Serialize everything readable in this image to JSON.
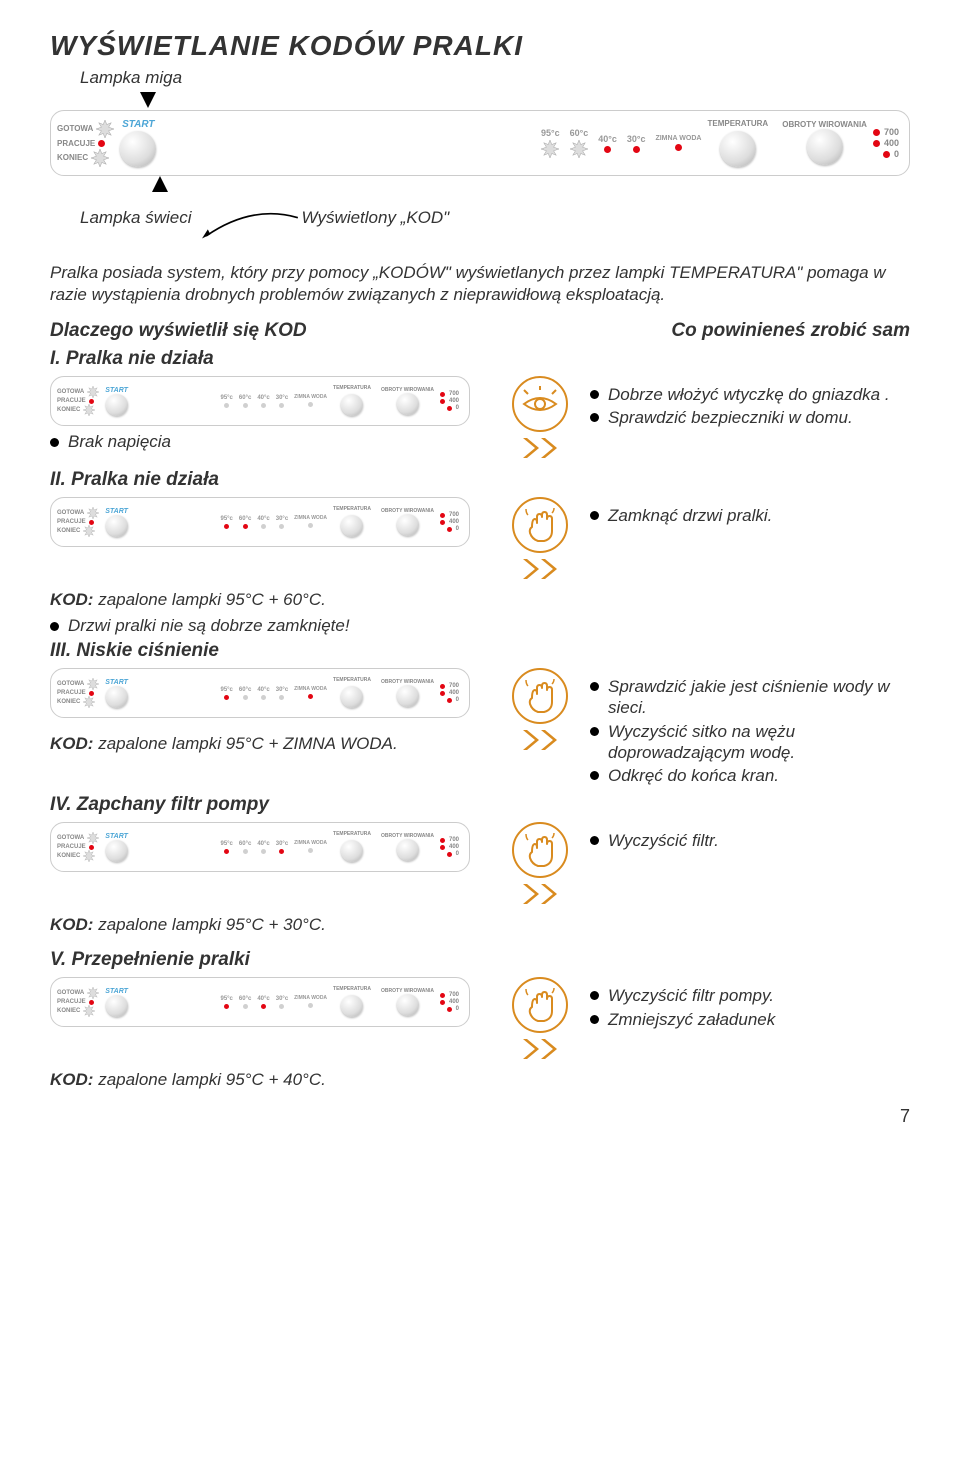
{
  "title": "WYŚWIETLANIE KODÓW PRALKI",
  "lamp_blinks": "Lampka miga",
  "lamp_on": "Lampka świeci",
  "kod_shown": "Wyświetlony „KOD\"",
  "intro": "Pralka posiada system, który przy pomocy „KODÓW\" wyświetlanych przez lampki TEMPERATURA\" pomaga w razie wystąpienia drobnych problemów związanych z nieprawidłową eksploatacją.",
  "why_head": "Dlaczego wyświetlił się KOD",
  "todo_head": "Co powinieneś zrobić sam",
  "panel": {
    "gotowa": "GOTOWA",
    "pracuje": "PRACUJE",
    "koniec": "KONIEC",
    "start": "START",
    "temps": [
      "95°c",
      "60°c",
      "40°c",
      "30°c"
    ],
    "zimna": "ZIMNA WODA",
    "temperatura": "TEMPERATURA",
    "obroty": "OBROTY WIROWANIA",
    "obroty_vals": [
      "700",
      "400",
      "0"
    ]
  },
  "sections": {
    "s1": {
      "head": "I. Pralka nie działa",
      "cause": "Brak napięcia",
      "advice": [
        "Dobrze włożyć wtyczkę do gniazdka .",
        "Sprawdzić bezpieczniki w domu."
      ],
      "panel_lit": {
        "temps": [
          false,
          false,
          false,
          false
        ],
        "zimna": false
      }
    },
    "s2": {
      "head": "II. Pralka nie działa",
      "kod": "KOD: zapalone lampki 95°C + 60°C.",
      "cause": "Drzwi pralki nie są dobrze zamknięte!",
      "advice": [
        "Zamknąć drzwi pralki."
      ],
      "panel_lit": {
        "temps": [
          true,
          true,
          false,
          false
        ],
        "zimna": false
      }
    },
    "s3": {
      "head": "III. Niskie ciśnienie",
      "kod": "KOD: zapalone lampki 95°C + ZIMNA WODA.",
      "advice": [
        "Sprawdzić jakie jest ciśnienie wody w sieci.",
        "Wyczyścić sitko na wężu doprowadzającym wodę.",
        "Odkręć do końca kran."
      ],
      "panel_lit": {
        "temps": [
          true,
          false,
          false,
          false
        ],
        "zimna": true
      }
    },
    "s4": {
      "head": "IV. Zapchany filtr pompy",
      "kod": "KOD: zapalone lampki 95°C + 30°C.",
      "advice": [
        "Wyczyścić filtr."
      ],
      "panel_lit": {
        "temps": [
          true,
          false,
          false,
          true
        ],
        "zimna": false
      }
    },
    "s5": {
      "head": "V. Przepełnienie pralki",
      "kod": "KOD: zapalone lampki 95°C + 40°C.",
      "advice": [
        "Wyczyścić filtr pompy.",
        "Zmniejszyć załadunek"
      ],
      "panel_lit": {
        "temps": [
          true,
          false,
          true,
          false
        ],
        "zimna": false
      }
    }
  },
  "page_number": "7",
  "colors": {
    "red": "#e30613",
    "gold": "#d98b1f",
    "blue": "#4da6d6",
    "gray": "#d0d0d0"
  }
}
